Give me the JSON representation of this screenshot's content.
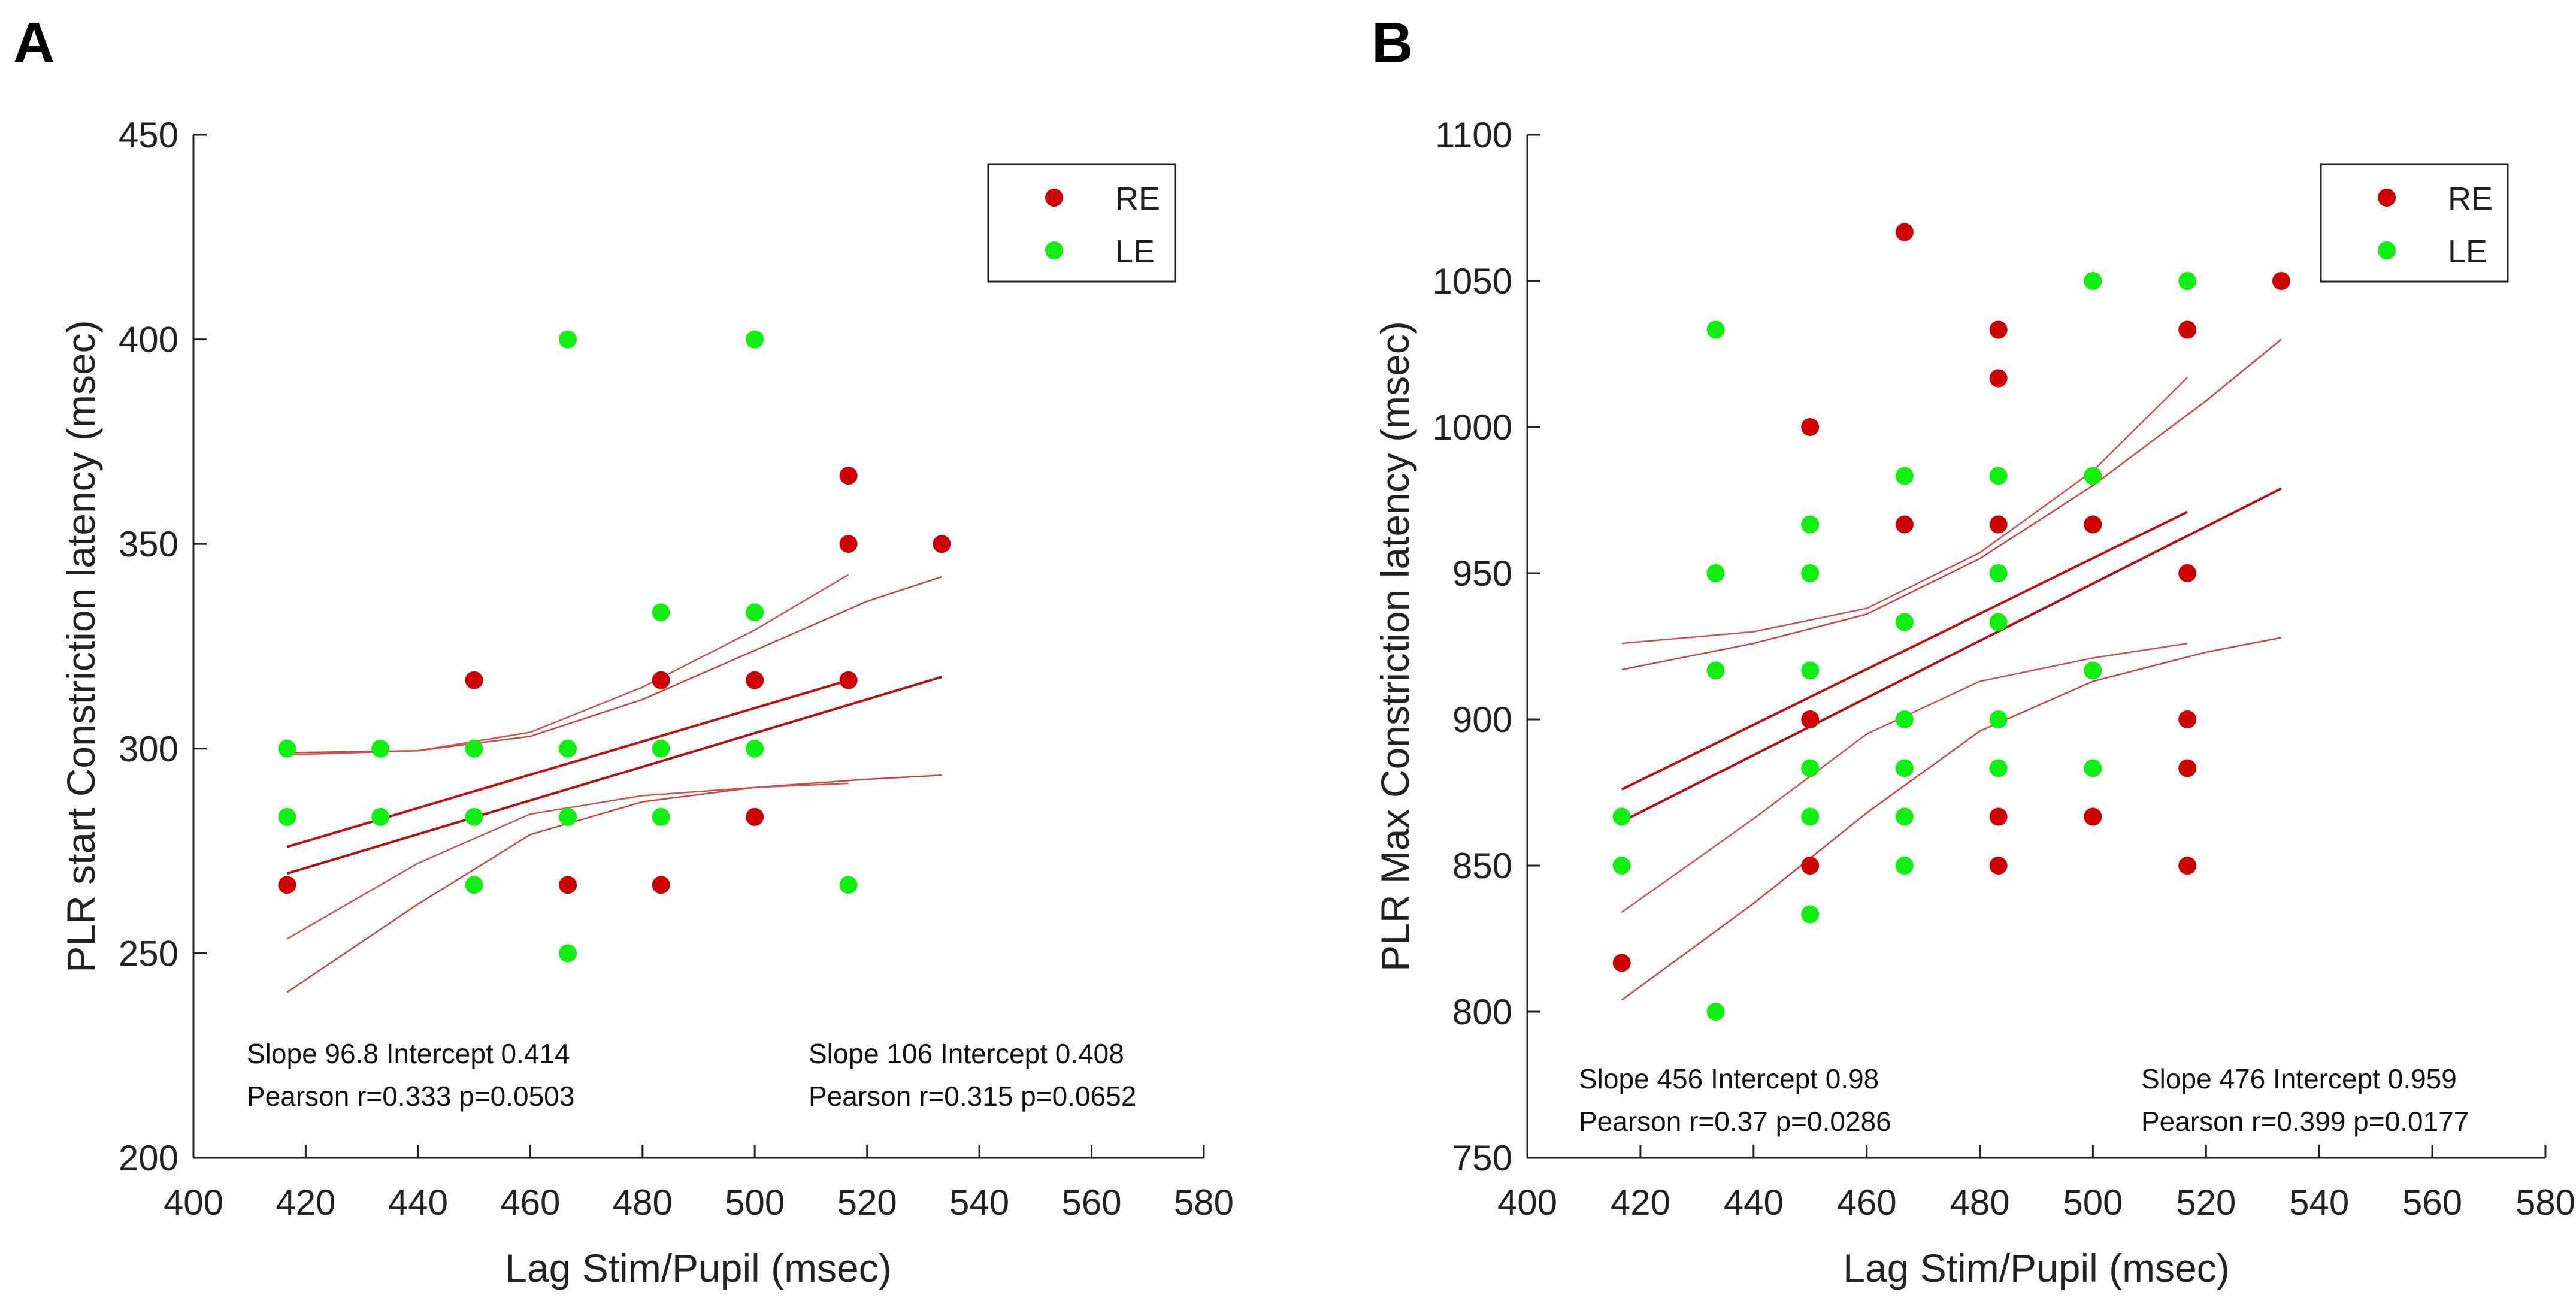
{
  "colors": {
    "RE": "#cc0000",
    "LE": "#11ee11",
    "fit_RE": "#b81010",
    "ci_RE": "#d04040",
    "fit_LE": "#c01010",
    "ci_LE": "#d05050"
  },
  "chart_data": [
    {
      "type": "scatter",
      "panel": "A",
      "xlabel": "Lag Stim/Pupil (msec)",
      "ylabel": "PLR start Constriction latency (msec)",
      "xlim": [
        400,
        580
      ],
      "ylim": [
        200,
        450
      ],
      "xticks": [
        400,
        420,
        440,
        460,
        480,
        500,
        520,
        540,
        560,
        580
      ],
      "yticks": [
        200,
        250,
        300,
        350,
        400,
        450
      ],
      "legend": {
        "position": "top-right",
        "entries": [
          "RE",
          "LE"
        ]
      },
      "series": [
        {
          "name": "RE",
          "points": [
            [
              416.7,
              266.7
            ],
            [
              450,
              316.7
            ],
            [
              466.7,
              266.7
            ],
            [
              483.3,
              266.7
            ],
            [
              483.3,
              316.7
            ],
            [
              500,
              283.3
            ],
            [
              500,
              316.7
            ],
            [
              516.7,
              316.7
            ],
            [
              516.7,
              350
            ],
            [
              516.7,
              366.7
            ],
            [
              533.3,
              350
            ]
          ]
        },
        {
          "name": "LE",
          "points": [
            [
              416.7,
              300
            ],
            [
              416.7,
              283.3
            ],
            [
              433.3,
              300
            ],
            [
              433.3,
              283.3
            ],
            [
              450,
              300
            ],
            [
              450,
              283.3
            ],
            [
              450,
              266.7
            ],
            [
              466.7,
              400
            ],
            [
              466.7,
              300
            ],
            [
              466.7,
              283.3
            ],
            [
              466.7,
              250
            ],
            [
              483.3,
              333.3
            ],
            [
              483.3,
              300
            ],
            [
              483.3,
              283.3
            ],
            [
              500,
              400
            ],
            [
              500,
              333.3
            ],
            [
              500,
              300
            ],
            [
              516.7,
              266.7
            ]
          ]
        }
      ],
      "fits": [
        {
          "series": "RE",
          "line": [
            [
              416.7,
              269.5
            ],
            [
              533.3,
              317.5
            ]
          ],
          "ci_upper": [
            [
              416.7,
              299
            ],
            [
              440,
              299.5
            ],
            [
              460,
              303
            ],
            [
              480,
              312
            ],
            [
              500,
              324
            ],
            [
              520,
              336
            ],
            [
              533.3,
              342
            ]
          ],
          "ci_lower": [
            [
              416.7,
              240.5
            ],
            [
              440,
              262
            ],
            [
              460,
              279
            ],
            [
              480,
              287
            ],
            [
              500,
              290.5
            ],
            [
              520,
              292.5
            ],
            [
              533.3,
              293.5
            ]
          ]
        },
        {
          "series": "LE",
          "line": [
            [
              416.7,
              276
            ],
            [
              516.7,
              316.7
            ]
          ],
          "ci_upper": [
            [
              416.7,
              298.5
            ],
            [
              440,
              299.5
            ],
            [
              460,
              304
            ],
            [
              480,
              315
            ],
            [
              500,
              329
            ],
            [
              516.7,
              342.5
            ]
          ],
          "ci_lower": [
            [
              416.7,
              253.5
            ],
            [
              440,
              272
            ],
            [
              460,
              284
            ],
            [
              480,
              288.5
            ],
            [
              500,
              290.5
            ],
            [
              516.7,
              291.5
            ]
          ]
        }
      ],
      "annotations": [
        {
          "line1": "Slope 96.8 Intercept 0.414",
          "line2": "Pearson r=0.333  p=0.0503"
        },
        {
          "line1": "Slope 106 Intercept 0.408",
          "line2": "Pearson r=0.315  p=0.0652"
        }
      ]
    },
    {
      "type": "scatter",
      "panel": "B",
      "xlabel": "Lag Stim/Pupil (msec)",
      "ylabel": "PLR Max Constriction latency (msec)",
      "xlim": [
        400,
        580
      ],
      "ylim": [
        750,
        1100
      ],
      "xticks": [
        400,
        420,
        440,
        460,
        480,
        500,
        520,
        540,
        560,
        580
      ],
      "yticks": [
        750,
        800,
        850,
        900,
        950,
        1000,
        1050,
        1100
      ],
      "legend": {
        "position": "top-right",
        "entries": [
          "RE",
          "LE"
        ]
      },
      "series": [
        {
          "name": "RE",
          "points": [
            [
              416.7,
              816.7
            ],
            [
              450,
              1000
            ],
            [
              450,
              900
            ],
            [
              450,
              850
            ],
            [
              466.7,
              1066.7
            ],
            [
              466.7,
              966.7
            ],
            [
              483.3,
              1033.3
            ],
            [
              483.3,
              1016.7
            ],
            [
              483.3,
              966.7
            ],
            [
              483.3,
              866.7
            ],
            [
              483.3,
              850
            ],
            [
              500,
              966.7
            ],
            [
              500,
              866.7
            ],
            [
              516.7,
              1033.3
            ],
            [
              516.7,
              950
            ],
            [
              516.7,
              900
            ],
            [
              516.7,
              883.3
            ],
            [
              516.7,
              850
            ],
            [
              533.3,
              1050
            ]
          ]
        },
        {
          "name": "LE",
          "points": [
            [
              416.7,
              866.7
            ],
            [
              416.7,
              850
            ],
            [
              433.3,
              1033.3
            ],
            [
              433.3,
              950
            ],
            [
              433.3,
              916.7
            ],
            [
              433.3,
              800
            ],
            [
              450,
              966.7
            ],
            [
              450,
              950
            ],
            [
              450,
              916.7
            ],
            [
              450,
              883.3
            ],
            [
              450,
              866.7
            ],
            [
              450,
              833.3
            ],
            [
              466.7,
              983.3
            ],
            [
              466.7,
              933.3
            ],
            [
              466.7,
              900
            ],
            [
              466.7,
              883.3
            ],
            [
              466.7,
              866.7
            ],
            [
              466.7,
              850
            ],
            [
              483.3,
              983.3
            ],
            [
              483.3,
              950
            ],
            [
              483.3,
              933.3
            ],
            [
              483.3,
              900
            ],
            [
              483.3,
              883.3
            ],
            [
              500,
              1050
            ],
            [
              500,
              983.3
            ],
            [
              500,
              916.7
            ],
            [
              500,
              883.3
            ],
            [
              516.7,
              1050
            ]
          ]
        }
      ],
      "fits": [
        {
          "series": "RE",
          "line": [
            [
              416.7,
              865
            ],
            [
              533.3,
              979
            ]
          ],
          "ci_upper": [
            [
              416.7,
              917
            ],
            [
              440,
              926
            ],
            [
              460,
              936
            ],
            [
              480,
              955
            ],
            [
              500,
              980
            ],
            [
              520,
              1009
            ],
            [
              533.3,
              1030
            ]
          ],
          "ci_lower": [
            [
              416.7,
              804
            ],
            [
              440,
              837
            ],
            [
              460,
              868
            ],
            [
              480,
              896
            ],
            [
              500,
              913
            ],
            [
              520,
              923
            ],
            [
              533.3,
              928
            ]
          ]
        },
        {
          "series": "LE",
          "line": [
            [
              416.7,
              876
            ],
            [
              516.7,
              971
            ]
          ],
          "ci_upper": [
            [
              416.7,
              926
            ],
            [
              440,
              930
            ],
            [
              460,
              938
            ],
            [
              480,
              957
            ],
            [
              500,
              985
            ],
            [
              516.7,
              1017
            ]
          ],
          "ci_lower": [
            [
              416.7,
              834
            ],
            [
              440,
              866
            ],
            [
              460,
              895
            ],
            [
              480,
              913
            ],
            [
              500,
              921
            ],
            [
              516.7,
              926
            ]
          ]
        }
      ],
      "annotations": [
        {
          "line1": "Slope 456 Intercept 0.98",
          "line2": "Pearson r=0.37  p=0.0286"
        },
        {
          "line1": "Slope 476 Intercept 0.959",
          "line2": "Pearson r=0.399  p=0.0177"
        }
      ]
    }
  ]
}
